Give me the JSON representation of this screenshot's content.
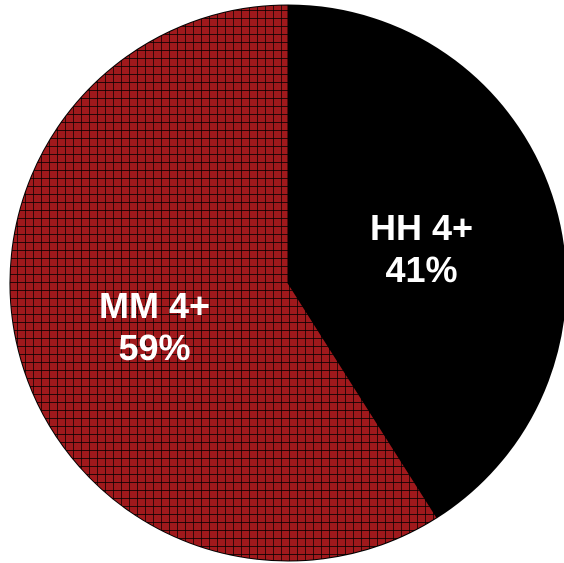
{
  "chart_data": {
    "type": "pie",
    "slices": [
      {
        "label": "HH 4+",
        "percent_label": "41%",
        "value": 41,
        "color": "#000000",
        "pattern": "solid"
      },
      {
        "label": "MM 4+",
        "percent_label": "59%",
        "value": 59,
        "color": "#a0191c",
        "pattern": "grid"
      }
    ],
    "start_angle_deg": 0,
    "direction": "clockwise",
    "legend": "none"
  }
}
